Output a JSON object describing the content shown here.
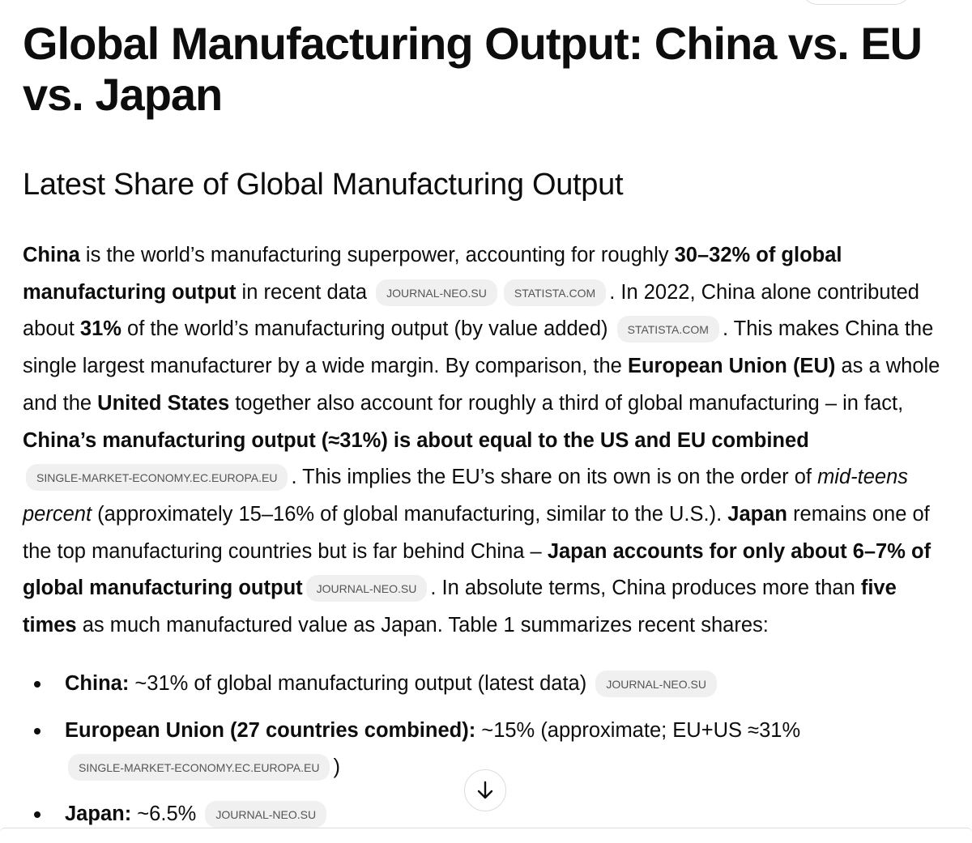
{
  "title": "Global Manufacturing Output: China vs. EU vs. Japan",
  "section": {
    "heading": "Latest Share of Global Manufacturing Output",
    "paragraph": [
      {
        "text": "China",
        "style": "bold"
      },
      {
        "text": " is the world’s manufacturing superpower, accounting for roughly ",
        "style": "plain"
      },
      {
        "text": "30–32% of global manufacturing output",
        "style": "bold"
      },
      {
        "text": " in recent data ",
        "style": "plain"
      },
      {
        "text": "JOURNAL-NEO.SU",
        "style": "cite"
      },
      {
        "text": "STATISTA.COM",
        "style": "cite"
      },
      {
        "text": ". In 2022, China alone contributed about ",
        "style": "plain"
      },
      {
        "text": "31%",
        "style": "bold"
      },
      {
        "text": " of the world’s manufacturing output (by value added) ",
        "style": "plain"
      },
      {
        "text": "STATISTA.COM",
        "style": "cite"
      },
      {
        "text": ". This makes China the single largest manufacturer by a wide margin. By comparison, the ",
        "style": "plain"
      },
      {
        "text": "European Union (EU)",
        "style": "bold"
      },
      {
        "text": " as a whole and the ",
        "style": "plain"
      },
      {
        "text": "United States",
        "style": "bold"
      },
      {
        "text": " together also account for roughly a third of global manufacturing – in fact, ",
        "style": "plain"
      },
      {
        "text": "China’s manufacturing output (≈31%) is about equal to the US and EU combined",
        "style": "bold"
      },
      {
        "text": "SINGLE-MARKET-ECONOMY.EC.EUROPA.EU",
        "style": "cite"
      },
      {
        "text": ". This implies the EU’s share on its own is on the order of ",
        "style": "plain"
      },
      {
        "text": "mid-teens percent",
        "style": "italic"
      },
      {
        "text": " (approximately 15–16% of global manufacturing, similar to the U.S.). ",
        "style": "plain"
      },
      {
        "text": "Japan",
        "style": "bold"
      },
      {
        "text": " remains one of the top manufacturing countries but is far behind China – ",
        "style": "plain"
      },
      {
        "text": "Japan accounts for only about 6–7% of global manufacturing output",
        "style": "bold"
      },
      {
        "text": "JOURNAL-NEO.SU",
        "style": "cite"
      },
      {
        "text": ". In absolute terms, China produces more than ",
        "style": "plain"
      },
      {
        "text": "five times",
        "style": "bold"
      },
      {
        "text": " as much manufactured value as Japan. Table 1 summarizes recent shares:",
        "style": "plain"
      }
    ],
    "bullets": [
      [
        {
          "text": "China:",
          "style": "bold"
        },
        {
          "text": " ~31% of global manufacturing output (latest data) ",
          "style": "plain"
        },
        {
          "text": "JOURNAL-NEO.SU",
          "style": "cite"
        }
      ],
      [
        {
          "text": "European Union (27 countries combined):",
          "style": "bold"
        },
        {
          "text": " ~15% (approximate; EU+US ≈31% ",
          "style": "plain"
        },
        {
          "text": "SINGLE-MARKET-ECONOMY.EC.EUROPA.EU",
          "style": "cite"
        },
        {
          "text": ")",
          "style": "plain"
        }
      ],
      [
        {
          "text": "Japan:",
          "style": "bold"
        },
        {
          "text": " ~6.5% ",
          "style": "plain"
        },
        {
          "text": "JOURNAL-NEO.SU",
          "style": "cite"
        }
      ]
    ]
  }
}
